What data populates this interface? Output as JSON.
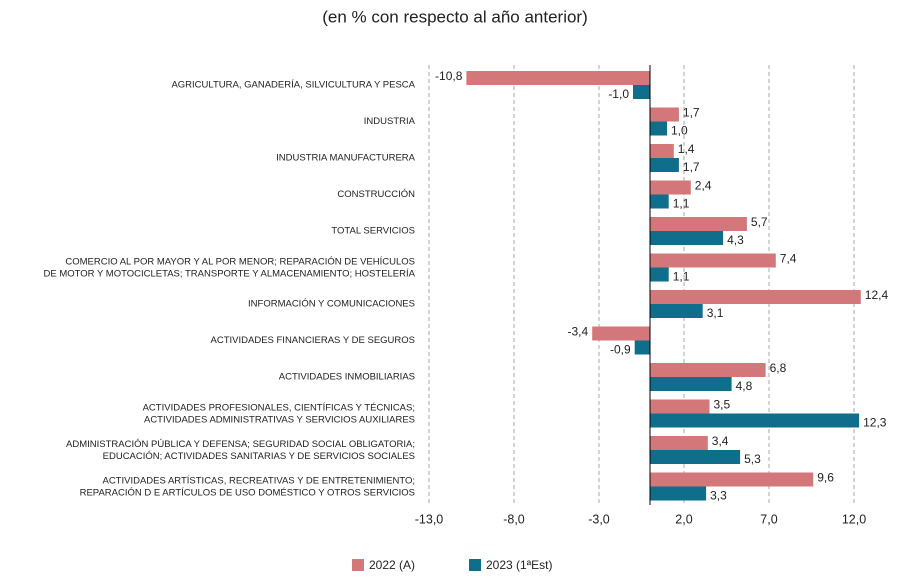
{
  "chart_data": {
    "type": "hbar",
    "title": "(en % con respecto al año anterior)",
    "categories": [
      "AGRICULTURA, GANADERÍA, SILVICULTURA Y PESCA",
      "INDUSTRIA",
      "INDUSTRIA MANUFACTURERA",
      "CONSTRUCCIÓN",
      "TOTAL SERVICIOS",
      "COMERCIO AL POR MAYOR Y AL POR MENOR; REPARACIÓN DE VEHÍCULOS\nDE MOTOR Y MOTOCICLETAS; TRANSPORTE Y ALMACENAMIENTO; HOSTELERÍA",
      "INFORMACIÓN Y COMUNICACIONES",
      "ACTIVIDADES FINANCIERAS Y DE SEGUROS",
      "ACTIVIDADES INMOBILIARIAS",
      "ACTIVIDADES PROFESIONALES, CIENTÍFICAS Y TÉCNICAS;\nACTIVIDADES ADMINISTRATIVAS Y SERVICIOS AUXILIARES",
      "ADMINISTRACIÓN PÚBLICA Y DEFENSA; SEGURIDAD SOCIAL OBLIGATORIA;\nEDUCACIÓN; ACTIVIDADES SANITARIAS Y DE SERVICIOS SOCIALES",
      "ACTIVIDADES ARTÍSTICAS, RECREATIVAS Y DE ENTRETENIMIENTO;\nREPARACIÓN D E ARTÍCULOS DE USO DOMÉSTICO Y OTROS SERVICIOS"
    ],
    "series": [
      {
        "name": "2022 (A)",
        "color": "#d4777a",
        "values": [
          -10.8,
          1.7,
          1.4,
          2.4,
          5.7,
          7.4,
          12.4,
          -3.4,
          6.8,
          3.5,
          3.4,
          9.6
        ],
        "value_labels": [
          "-10,8",
          "1,7",
          "1,4",
          "2,4",
          "5,7",
          "7,4",
          "12,4",
          "-3,4",
          "6,8",
          "3,5",
          "3,4",
          "9,6"
        ]
      },
      {
        "name": "2023 (1ªEst)",
        "color": "#0e6e8c",
        "values": [
          -1.0,
          1.0,
          1.7,
          1.1,
          4.3,
          1.1,
          3.1,
          -0.9,
          4.8,
          12.3,
          5.3,
          3.3
        ],
        "value_labels": [
          "-1,0",
          "1,0",
          "1,7",
          "1,1",
          "4,3",
          "1,1",
          "3,1",
          "-0,9",
          "4,8",
          "12,3",
          "5,3",
          "3,3"
        ]
      }
    ],
    "xlim": [
      -13,
      13
    ],
    "xticks": [
      {
        "value": -13,
        "label": "-13,0"
      },
      {
        "value": -8,
        "label": "-8,0"
      },
      {
        "value": -3,
        "label": "-3,0"
      },
      {
        "value": 2,
        "label": "2,0"
      },
      {
        "value": 7,
        "label": "7,0"
      },
      {
        "value": 12,
        "label": "12,0"
      }
    ],
    "grid": true,
    "legend": "bottom"
  }
}
